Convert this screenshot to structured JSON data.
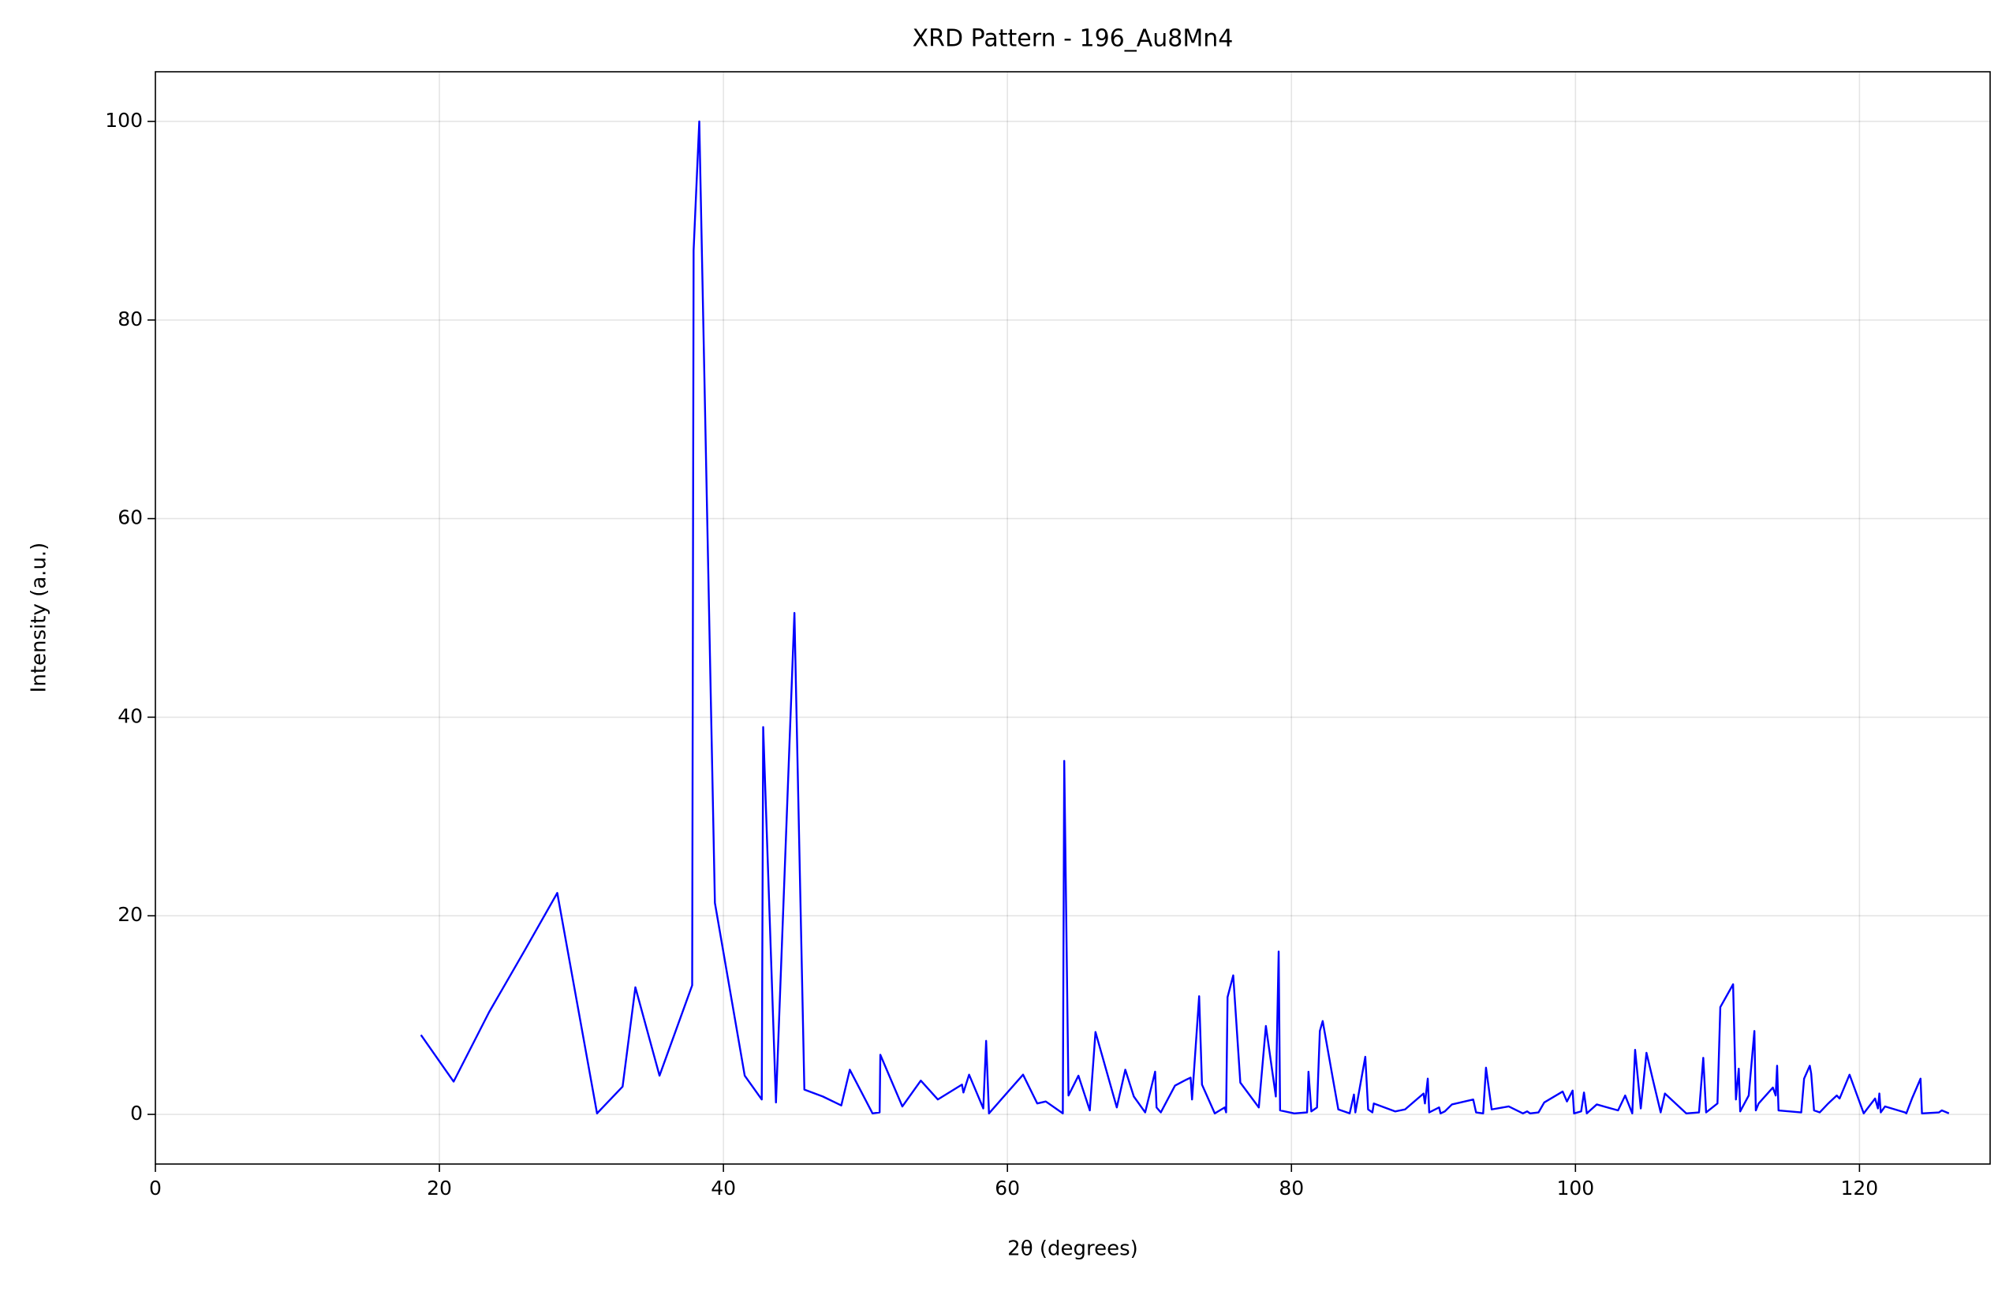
{
  "chart_data": {
    "type": "line",
    "title": "XRD Pattern - 196_Au8Mn4",
    "x_label": "2θ (degrees)",
    "y_label": "Intensity (a.u.)",
    "xlim": [
      0,
      129.2
    ],
    "ylim": [
      -5,
      105
    ],
    "xticks": [
      0,
      20,
      40,
      60,
      80,
      100,
      120
    ],
    "yticks": [
      0,
      20,
      40,
      60,
      80,
      100
    ],
    "grid": true,
    "series": [
      {
        "name": "196_Au8Mn4",
        "color": "#0000ff",
        "x": [
          18.7,
          21,
          23.5,
          26,
          28.3,
          31.1,
          32.9,
          33.8,
          35.5,
          37.8,
          37.9,
          38.3,
          39.4,
          41.5,
          42.7,
          42.8,
          43.7,
          45.0,
          45.7,
          47,
          48.3,
          48.9,
          50.5,
          51,
          51.05,
          52.6,
          53.9,
          55.1,
          56.8,
          56.9,
          57.3,
          58.3,
          58.5,
          58.7,
          61.1,
          62.1,
          62.7,
          63.9,
          64.0,
          64.3,
          65.0,
          65.8,
          66.2,
          67.7,
          68.3,
          68.9,
          69.7,
          70.4,
          70.5,
          70.8,
          71.8,
          72.6,
          72.9,
          73.0,
          73.5,
          73.7,
          74.6,
          75.3,
          75.4,
          75.5,
          75.9,
          76.4,
          77.7,
          78.2,
          78.9,
          79.1,
          79.2,
          80.2,
          81.1,
          81.2,
          81.4,
          81.8,
          82.0,
          82.2,
          83.3,
          84.1,
          84.4,
          84.5,
          85.2,
          85.4,
          85.7,
          85.8,
          87.3,
          88.0,
          89.3,
          89.4,
          89.6,
          89.7,
          90.4,
          90.5,
          90.8,
          91.3,
          92.8,
          93.0,
          93.5,
          93.7,
          94.1,
          95.3,
          96.3,
          96.6,
          96.8,
          97.4,
          97.8,
          99.1,
          99.4,
          99.8,
          99.9,
          100.4,
          100.6,
          100.8,
          101.5,
          103.0,
          103.5,
          104.0,
          104.2,
          104.6,
          105.0,
          106.0,
          106.3,
          107.8,
          108.7,
          109.0,
          109.2,
          110.0,
          110.2,
          111.1,
          111.3,
          111.5,
          111.6,
          112.2,
          112.6,
          112.7,
          112.9,
          113.9,
          114.1,
          114.2,
          114.3,
          115.9,
          116.1,
          116.5,
          116.6,
          116.8,
          117.2,
          117.8,
          118.4,
          118.6,
          119.3,
          120.3,
          121.1,
          121.3,
          121.4,
          121.5,
          121.8,
          123.2,
          123.3,
          123.7,
          124.3,
          124.4,
          125.6,
          125.8,
          126.3
        ],
        "values": [
          8,
          3.3,
          10.3,
          16.5,
          22.3,
          0.1,
          2.8,
          12.8,
          3.9,
          13,
          87,
          100,
          21.3,
          3.9,
          1.5,
          39,
          1.2,
          50.5,
          2.5,
          1.8,
          0.9,
          4.5,
          0.1,
          0.2,
          6,
          0.8,
          3.4,
          1.5,
          3,
          2.2,
          4,
          0.6,
          7.4,
          0.1,
          4,
          1.1,
          1.3,
          0.1,
          35.6,
          1.9,
          3.9,
          0.4,
          8.3,
          0.7,
          4.5,
          1.8,
          0.2,
          4.3,
          0.7,
          0.2,
          2.9,
          3.5,
          3.7,
          1.5,
          11.9,
          3.0,
          0.1,
          0.7,
          0.2,
          11.8,
          14,
          3.2,
          0.7,
          8.9,
          1.8,
          16.4,
          0.4,
          0.1,
          0.2,
          4.3,
          0.3,
          0.7,
          8.4,
          9.4,
          0.5,
          0.1,
          2.0,
          0.2,
          5.8,
          0.5,
          0.2,
          1.1,
          0.3,
          0.5,
          2.1,
          1.1,
          3.6,
          0.2,
          0.7,
          0.1,
          0.3,
          1.0,
          1.5,
          0.2,
          0.1,
          4.7,
          0.5,
          0.8,
          0.1,
          0.3,
          0.1,
          0.2,
          1.2,
          2.3,
          1.3,
          2.4,
          0.1,
          0.3,
          2.2,
          0.1,
          1.0,
          0.4,
          1.9,
          0.1,
          6.5,
          0.6,
          6.2,
          0.2,
          2.1,
          0.1,
          0.2,
          5.7,
          0.2,
          1.1,
          10.8,
          13.1,
          1.5,
          4.6,
          0.3,
          1.9,
          8.4,
          0.4,
          1.1,
          2.7,
          1.9,
          4.9,
          0.4,
          0.2,
          3.6,
          4.9,
          4.1,
          0.4,
          0.2,
          1.1,
          1.9,
          1.6,
          4,
          0.1,
          1.6,
          0.6,
          2.1,
          0.2,
          0.8,
          0.2,
          0.1,
          1.6,
          3.6,
          0.1,
          0.2,
          0.4,
          0.1
        ]
      }
    ]
  }
}
